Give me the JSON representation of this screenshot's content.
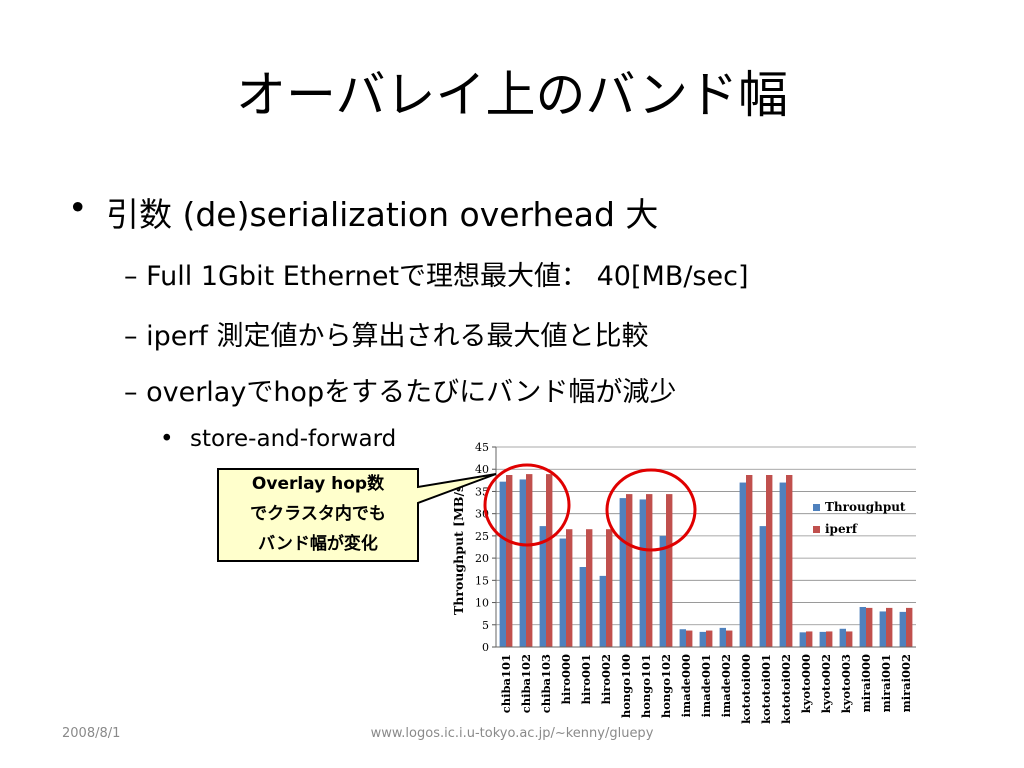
{
  "slide": {
    "title": "オーバレイ上のバンド幅",
    "bullet1": "引数 (de)serialization overhead 大",
    "sub_bullets": [
      "– Full 1Gbit Ethernetで理想最大値：  40[MB/sec]",
      "– iperf 測定値から算出される最大値と比較",
      "– overlayでhopをするたびにバンド幅が減少"
    ],
    "sub_sub_bullet": "store-and-forward",
    "callout_lines": [
      "Overlay hop数",
      "でクラスタ内でも",
      "バンド幅が変化"
    ],
    "footer_date": "2008/8/1",
    "footer_url": "www.logos.ic.i.u-tokyo.ac.jp/~kenny/gluepy",
    "bullet_glyph": "•"
  },
  "colors": {
    "throughput": "#4f81bd",
    "iperf": "#c0504d",
    "callout_fill": "#ffffcc",
    "circle": "#e00000"
  },
  "chart_data": {
    "type": "bar",
    "ylabel": "Throughput [MB/s]",
    "ylim": [
      0,
      45
    ],
    "yticks": [
      0,
      5,
      10,
      15,
      20,
      25,
      30,
      35,
      40,
      45
    ],
    "grid": true,
    "legend": "right",
    "categories": [
      "chiba101",
      "chiba102",
      "chiba103",
      "hiro000",
      "hiro001",
      "hiro002",
      "hongo100",
      "hongo101",
      "hongo102",
      "imade000",
      "imade001",
      "imade002",
      "kototoi000",
      "kototoi001",
      "kototoi002",
      "kyoto000",
      "kyoto002",
      "kyoto003",
      "mirai000",
      "mirai001",
      "mirai002"
    ],
    "series": [
      {
        "name": "Throughput",
        "values": [
          37.2,
          37.7,
          27.2,
          24.4,
          18.0,
          16.0,
          33.5,
          33.2,
          25.0,
          4.0,
          3.4,
          4.3,
          37.0,
          27.2,
          37.0,
          3.3,
          3.4,
          4.1,
          9.0,
          8.0,
          7.9
        ]
      },
      {
        "name": "iperf",
        "values": [
          38.7,
          38.9,
          38.9,
          26.5,
          26.5,
          26.5,
          34.4,
          34.4,
          34.4,
          3.7,
          3.7,
          3.7,
          38.7,
          38.7,
          38.7,
          3.5,
          3.5,
          3.5,
          8.8,
          8.8,
          8.8
        ]
      }
    ]
  }
}
